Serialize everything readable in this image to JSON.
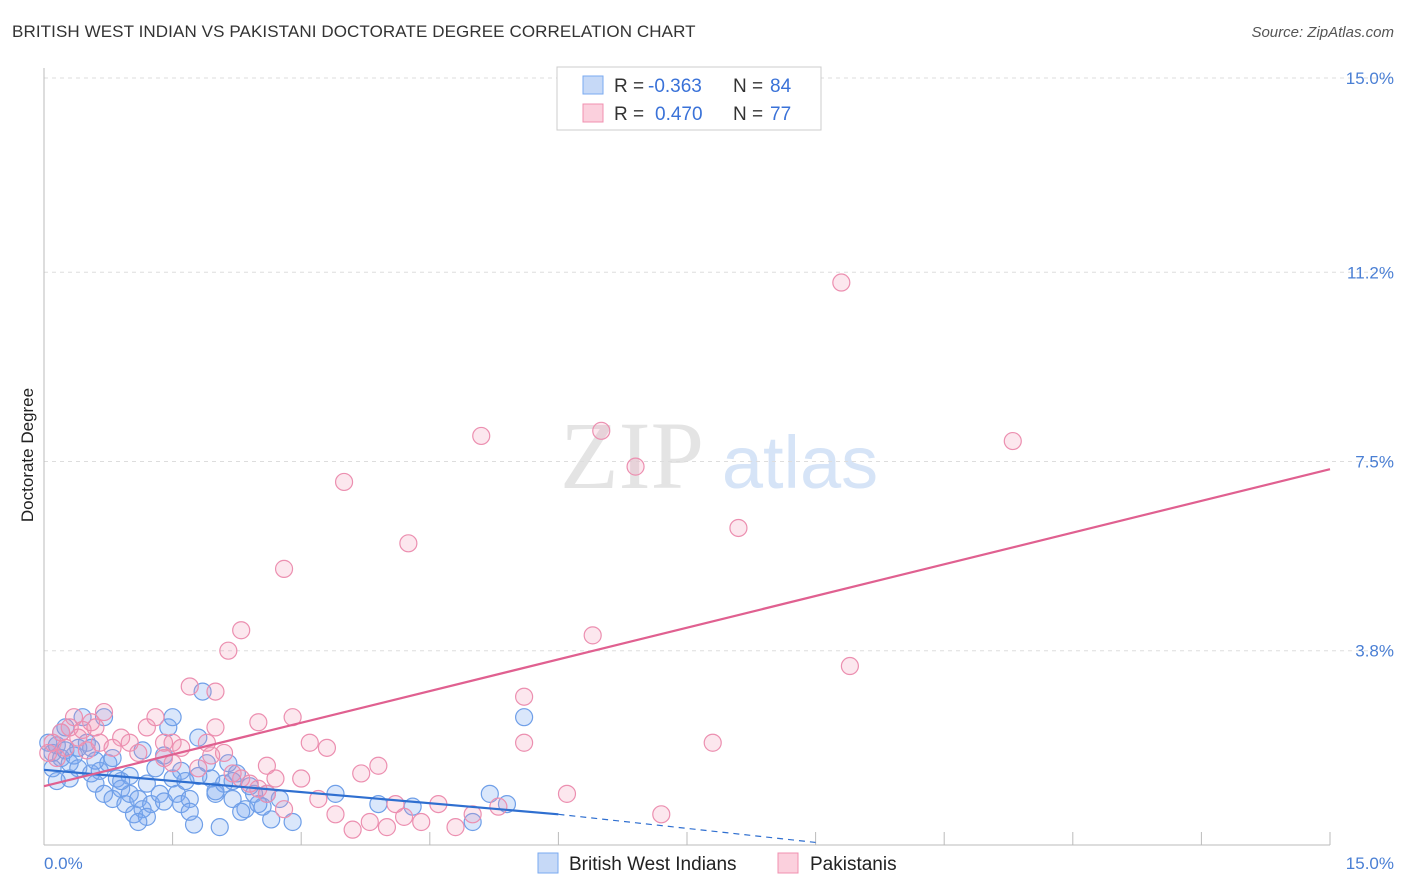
{
  "header": {
    "title": "BRITISH WEST INDIAN VS PAKISTANI DOCTORATE DEGREE CORRELATION CHART",
    "source": "Source: ZipAtlas.com"
  },
  "watermark": {
    "zip": "ZIP",
    "atlas": "atlas"
  },
  "legend": {
    "rows": [
      {
        "r_label": "R =",
        "r_value": "-0.363",
        "n_label": "N =",
        "n_value": "84",
        "color": "#7aaaf0"
      },
      {
        "r_label": "R =",
        "r_value": "0.470",
        "n_label": "N =",
        "n_value": "77",
        "color": "#f090b0"
      }
    ]
  },
  "bottom_legend": [
    {
      "label": "British West Indians",
      "color": "#7aaaf0"
    },
    {
      "label": "Pakistanis",
      "color": "#f090b0"
    }
  ],
  "chart_data": {
    "type": "scatter",
    "title": "BRITISH WEST INDIAN VS PAKISTANI DOCTORATE DEGREE CORRELATION CHART",
    "xlabel": "",
    "ylabel": "Doctorate Degree",
    "xlim": [
      0,
      15
    ],
    "ylim": [
      0,
      15
    ],
    "x_tick_labels": [
      "0.0%",
      "15.0%"
    ],
    "y_ticks": [
      3.8,
      7.5,
      11.2,
      15.0
    ],
    "y_tick_labels": [
      "3.8%",
      "7.5%",
      "11.2%",
      "15.0%"
    ],
    "grid": true,
    "legend_position": "top-center",
    "series": [
      {
        "name": "British West Indians",
        "color": "#7aaaf0",
        "line_color": "#2f6fd0",
        "trend": {
          "x0": 0.0,
          "y0": 1.47,
          "x1": 6.0,
          "y1": 0.6,
          "dashed_to_x": 9.0,
          "dashed_to_y": 0.05
        },
        "points": [
          [
            0.05,
            2.0
          ],
          [
            0.1,
            1.8
          ],
          [
            0.15,
            1.95
          ],
          [
            0.2,
            1.7
          ],
          [
            0.25,
            1.85
          ],
          [
            0.3,
            1.6
          ],
          [
            0.35,
            1.75
          ],
          [
            0.4,
            1.5
          ],
          [
            0.45,
            2.5
          ],
          [
            0.5,
            2.0
          ],
          [
            0.55,
            1.4
          ],
          [
            0.6,
            1.2
          ],
          [
            0.65,
            1.45
          ],
          [
            0.7,
            1.0
          ],
          [
            0.75,
            1.6
          ],
          [
            0.8,
            0.9
          ],
          [
            0.85,
            1.3
          ],
          [
            0.9,
            1.1
          ],
          [
            0.95,
            0.8
          ],
          [
            1.0,
            1.0
          ],
          [
            1.05,
            0.6
          ],
          [
            1.1,
            0.9
          ],
          [
            1.15,
            0.7
          ],
          [
            1.2,
            1.2
          ],
          [
            1.25,
            0.8
          ],
          [
            1.3,
            1.5
          ],
          [
            1.35,
            1.0
          ],
          [
            1.4,
            0.85
          ],
          [
            1.45,
            2.3
          ],
          [
            1.5,
            1.3
          ],
          [
            1.55,
            1.0
          ],
          [
            1.6,
            0.8
          ],
          [
            1.65,
            1.25
          ],
          [
            1.7,
            0.9
          ],
          [
            1.75,
            0.4
          ],
          [
            1.8,
            2.1
          ],
          [
            1.85,
            3.0
          ],
          [
            1.9,
            1.6
          ],
          [
            1.95,
            1.3
          ],
          [
            2.0,
            1.0
          ],
          [
            2.05,
            0.35
          ],
          [
            2.1,
            1.2
          ],
          [
            2.2,
            0.9
          ],
          [
            2.25,
            1.4
          ],
          [
            2.35,
            0.7
          ],
          [
            2.45,
            1.0
          ],
          [
            2.55,
            0.75
          ],
          [
            2.65,
            0.5
          ],
          [
            2.75,
            0.9
          ],
          [
            2.9,
            0.45
          ],
          [
            0.1,
            1.5
          ],
          [
            0.2,
            2.2
          ],
          [
            0.3,
            1.3
          ],
          [
            0.4,
            1.9
          ],
          [
            0.6,
            1.65
          ],
          [
            0.7,
            2.5
          ],
          [
            0.8,
            1.7
          ],
          [
            1.0,
            1.35
          ],
          [
            1.2,
            0.55
          ],
          [
            1.4,
            1.75
          ],
          [
            1.6,
            1.45
          ],
          [
            1.8,
            1.35
          ],
          [
            2.0,
            1.05
          ],
          [
            2.2,
            1.25
          ],
          [
            2.4,
            1.15
          ],
          [
            2.6,
            1.0
          ],
          [
            2.3,
            0.65
          ],
          [
            2.5,
            0.8
          ],
          [
            1.5,
            2.5
          ],
          [
            0.9,
            1.25
          ],
          [
            3.4,
            1.0
          ],
          [
            3.9,
            0.8
          ],
          [
            4.3,
            0.75
          ],
          [
            5.0,
            0.45
          ],
          [
            5.2,
            1.0
          ],
          [
            5.4,
            0.8
          ],
          [
            5.6,
            2.5
          ],
          [
            0.25,
            2.3
          ],
          [
            0.55,
            1.9
          ],
          [
            1.15,
            1.85
          ],
          [
            1.7,
            0.65
          ],
          [
            2.15,
            1.6
          ],
          [
            1.1,
            0.45
          ],
          [
            0.15,
            1.25
          ]
        ]
      },
      {
        "name": "Pakistanis",
        "color": "#f090b0",
        "line_color": "#e06090",
        "trend": {
          "x0": 0.0,
          "y0": 1.15,
          "x1": 15.0,
          "y1": 7.35
        },
        "points": [
          [
            0.1,
            2.0
          ],
          [
            0.15,
            1.7
          ],
          [
            0.2,
            2.2
          ],
          [
            0.25,
            1.9
          ],
          [
            0.3,
            2.3
          ],
          [
            0.35,
            2.5
          ],
          [
            0.4,
            2.1
          ],
          [
            0.5,
            1.85
          ],
          [
            0.55,
            2.4
          ],
          [
            0.6,
            2.3
          ],
          [
            0.65,
            2.0
          ],
          [
            0.7,
            2.6
          ],
          [
            0.8,
            1.9
          ],
          [
            0.9,
            2.1
          ],
          [
            1.0,
            2.0
          ],
          [
            1.1,
            1.8
          ],
          [
            1.2,
            2.3
          ],
          [
            1.3,
            2.5
          ],
          [
            1.4,
            2.0
          ],
          [
            1.5,
            1.6
          ],
          [
            1.6,
            1.9
          ],
          [
            1.7,
            3.1
          ],
          [
            1.8,
            1.5
          ],
          [
            1.9,
            2.0
          ],
          [
            2.0,
            2.3
          ],
          [
            2.1,
            1.8
          ],
          [
            2.2,
            1.4
          ],
          [
            2.3,
            1.3
          ],
          [
            2.4,
            1.2
          ],
          [
            2.5,
            1.1
          ],
          [
            2.6,
            1.0
          ],
          [
            2.8,
            0.7
          ],
          [
            3.0,
            1.3
          ],
          [
            3.2,
            0.9
          ],
          [
            3.4,
            0.6
          ],
          [
            3.6,
            0.3
          ],
          [
            3.8,
            0.45
          ],
          [
            4.0,
            0.35
          ],
          [
            4.2,
            0.55
          ],
          [
            4.4,
            0.45
          ],
          [
            4.6,
            0.8
          ],
          [
            4.8,
            0.35
          ],
          [
            5.0,
            0.6
          ],
          [
            5.3,
            0.75
          ],
          [
            5.6,
            2.0
          ],
          [
            0.05,
            1.8
          ],
          [
            1.5,
            2.0
          ],
          [
            2.5,
            2.4
          ],
          [
            2.9,
            2.5
          ],
          [
            3.1,
            2.0
          ],
          [
            3.3,
            1.9
          ],
          [
            3.5,
            7.1
          ],
          [
            3.7,
            1.4
          ],
          [
            4.1,
            0.8
          ],
          [
            4.25,
            5.9
          ],
          [
            5.1,
            8.0
          ],
          [
            5.6,
            2.9
          ],
          [
            6.1,
            1.0
          ],
          [
            6.4,
            4.1
          ],
          [
            6.5,
            8.1
          ],
          [
            6.9,
            7.4
          ],
          [
            7.2,
            0.6
          ],
          [
            7.8,
            2.0
          ],
          [
            8.1,
            6.2
          ],
          [
            9.3,
            11.0
          ],
          [
            9.4,
            3.5
          ],
          [
            11.3,
            7.9
          ],
          [
            2.15,
            3.8
          ],
          [
            2.3,
            4.2
          ],
          [
            2.8,
            5.4
          ],
          [
            2.0,
            3.0
          ],
          [
            2.7,
            1.3
          ],
          [
            1.4,
            1.7
          ],
          [
            1.95,
            1.75
          ],
          [
            2.6,
            1.55
          ],
          [
            3.9,
            1.55
          ],
          [
            0.45,
            2.25
          ]
        ]
      }
    ]
  }
}
